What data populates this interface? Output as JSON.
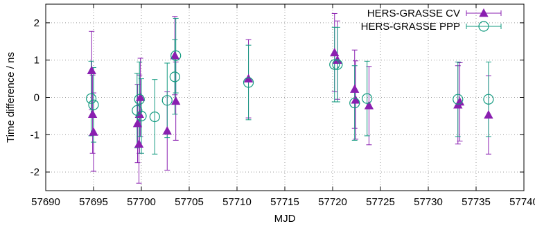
{
  "chart_data": {
    "type": "scatter",
    "xlabel": "MJD",
    "ylabel": "Time difference / ns",
    "xlim": [
      57690,
      57740
    ],
    "ylim": [
      -2.5,
      2.5
    ],
    "x_ticks": [
      57690,
      57695,
      57700,
      57705,
      57710,
      57715,
      57720,
      57725,
      57730,
      57735,
      57740
    ],
    "y_ticks": [
      -2,
      -1,
      0,
      1,
      2
    ],
    "grid": true,
    "legend_position": "top-right",
    "series": [
      {
        "name": "HERS-GRASSE CV",
        "marker": "triangle",
        "color": "#8a1fb0",
        "points": [
          {
            "x": 57694.8,
            "y": 0.72,
            "err": 1.05
          },
          {
            "x": 57694.9,
            "y": -0.45,
            "err": 1.05
          },
          {
            "x": 57695.0,
            "y": -0.93,
            "err": 1.05
          },
          {
            "x": 57699.6,
            "y": -0.7,
            "err": 1.05
          },
          {
            "x": 57699.75,
            "y": -1.25,
            "err": 1.05
          },
          {
            "x": 57699.8,
            "y": -0.45,
            "err": 1.05
          },
          {
            "x": 57699.9,
            "y": 0.0,
            "err": 1.05
          },
          {
            "x": 57702.7,
            "y": -0.9,
            "err": 1.05
          },
          {
            "x": 57703.5,
            "y": 1.12,
            "err": 1.05
          },
          {
            "x": 57703.6,
            "y": -0.1,
            "err": 1.05
          },
          {
            "x": 57711.2,
            "y": 0.5,
            "err": 1.05
          },
          {
            "x": 57720.2,
            "y": 1.2,
            "err": 1.05
          },
          {
            "x": 57720.5,
            "y": 1.0,
            "err": 1.05
          },
          {
            "x": 57722.3,
            "y": 0.22,
            "err": 1.05
          },
          {
            "x": 57722.4,
            "y": -0.07,
            "err": 1.05
          },
          {
            "x": 57723.8,
            "y": -0.22,
            "err": 1.05
          },
          {
            "x": 57733.1,
            "y": -0.2,
            "err": 1.05
          },
          {
            "x": 57733.3,
            "y": -0.12,
            "err": 1.05
          },
          {
            "x": 57736.3,
            "y": -0.47,
            "err": 1.05
          }
        ]
      },
      {
        "name": "HERS-GRASSE PPP",
        "marker": "circle",
        "color": "#129a7f",
        "points": [
          {
            "x": 57694.75,
            "y": -0.03,
            "err": 1.0
          },
          {
            "x": 57695.0,
            "y": -0.2,
            "err": 1.0
          },
          {
            "x": 57699.55,
            "y": -0.35,
            "err": 1.0
          },
          {
            "x": 57699.8,
            "y": -0.05,
            "err": 1.0
          },
          {
            "x": 57700.0,
            "y": -0.5,
            "err": 1.0
          },
          {
            "x": 57701.4,
            "y": -0.52,
            "err": 1.0
          },
          {
            "x": 57702.7,
            "y": -0.08,
            "err": 1.0
          },
          {
            "x": 57703.5,
            "y": 0.55,
            "err": 1.0
          },
          {
            "x": 57703.6,
            "y": 1.12,
            "err": 1.0
          },
          {
            "x": 57711.2,
            "y": 0.4,
            "err": 1.0
          },
          {
            "x": 57720.2,
            "y": 0.88,
            "err": 1.0
          },
          {
            "x": 57720.5,
            "y": 0.88,
            "err": 1.0
          },
          {
            "x": 57722.3,
            "y": -0.15,
            "err": 1.0
          },
          {
            "x": 57723.6,
            "y": -0.03,
            "err": 1.0
          },
          {
            "x": 57733.1,
            "y": -0.05,
            "err": 1.0
          },
          {
            "x": 57736.3,
            "y": -0.05,
            "err": 1.0
          }
        ]
      }
    ]
  }
}
